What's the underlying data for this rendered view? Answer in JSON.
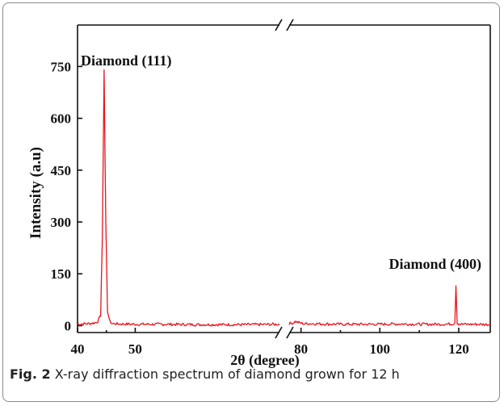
{
  "chart_data": {
    "type": "line",
    "xlabel": "2θ (degree)",
    "ylabel": "Intensity (a.u)",
    "xlim": [
      40,
      128
    ],
    "ylim": [
      -20,
      870
    ],
    "x_axis_break": [
      75,
      77
    ],
    "x_ticks": [
      40,
      50,
      80,
      100,
      120
    ],
    "y_ticks": [
      0,
      150,
      300,
      450,
      600,
      750
    ],
    "grid": false,
    "legend": "none",
    "series": [
      {
        "color": "#e8141e",
        "x": [
          40,
          41,
          42,
          43,
          43.5,
          44,
          44.3,
          44.6,
          44.9,
          45.2,
          45.6,
          46,
          47,
          50,
          55,
          60,
          65,
          70,
          75,
          77,
          78,
          78.5,
          80,
          81,
          82,
          85,
          90,
          95,
          100,
          105,
          110,
          115,
          118.5,
          119,
          119.3,
          119.6,
          120,
          121,
          125,
          128
        ],
        "y": [
          4,
          5,
          6,
          8,
          12,
          30,
          250,
          740,
          300,
          40,
          12,
          6,
          5,
          4,
          4,
          3,
          3,
          3,
          4,
          6,
          8,
          12,
          7,
          5,
          6,
          5,
          4,
          4,
          4,
          5,
          4,
          4,
          5,
          8,
          115,
          8,
          5,
          4,
          4,
          3
        ]
      }
    ],
    "annotations": [
      {
        "text": "Diamond (111)",
        "x": 44.6,
        "y": 740
      },
      {
        "text": "Diamond (400)",
        "x": 119.3,
        "y": 115
      }
    ]
  },
  "caption": {
    "label": "Fig. 2",
    "text": " X-ray diffraction spectrum of diamond grown for 12 h"
  }
}
